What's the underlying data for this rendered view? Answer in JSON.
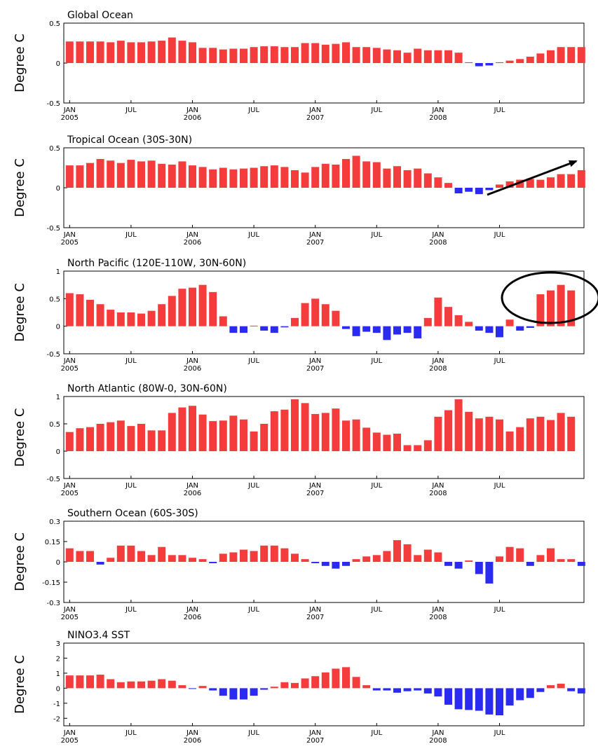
{
  "colors": {
    "positive": "#f53c3c",
    "negative": "#2a2af0",
    "axis": "#000000",
    "annotation": "#000000"
  },
  "x_ticks": [
    {
      "label": "JAN",
      "year": "2005",
      "month_index": 1
    },
    {
      "label": "JUL",
      "year": "",
      "month_index": 7
    },
    {
      "label": "JAN",
      "year": "2006",
      "month_index": 13
    },
    {
      "label": "JUL",
      "year": "",
      "month_index": 19
    },
    {
      "label": "JAN",
      "year": "2007",
      "month_index": 25
    },
    {
      "label": "JUL",
      "year": "",
      "month_index": 31
    },
    {
      "label": "JAN",
      "year": "2008",
      "month_index": 37
    },
    {
      "label": "JUL",
      "year": "",
      "month_index": 43
    }
  ],
  "chart_data": [
    {
      "type": "bar",
      "title": "Global Ocean",
      "ylabel": "Degree C",
      "ylim": [
        -0.5,
        0.5
      ],
      "yticks": [
        {
          "v": 0.5,
          "label": "0.5"
        },
        {
          "v": 0,
          "label": "0"
        },
        {
          "v": -0.5,
          "label": "-0.5"
        }
      ],
      "values": [
        0.27,
        0.27,
        0.27,
        0.27,
        0.26,
        0.28,
        0.26,
        0.26,
        0.27,
        0.28,
        0.32,
        0.28,
        0.26,
        0.19,
        0.19,
        0.17,
        0.18,
        0.18,
        0.2,
        0.21,
        0.21,
        0.2,
        0.2,
        0.25,
        0.25,
        0.23,
        0.24,
        0.26,
        0.2,
        0.2,
        0.19,
        0.17,
        0.16,
        0.13,
        0.18,
        0.16,
        0.16,
        0.16,
        0.13,
        0.01,
        -0.04,
        -0.03,
        0.01,
        0.03,
        0.05,
        0.08,
        0.12,
        0.16,
        0.2,
        0.2,
        0.2
      ]
    },
    {
      "type": "bar",
      "title": "Tropical Ocean (30S-30N)",
      "ylabel": "Degree C",
      "ylim": [
        -0.5,
        0.5
      ],
      "yticks": [
        {
          "v": 0.5,
          "label": "0.5"
        },
        {
          "v": 0,
          "label": "0"
        },
        {
          "v": -0.5,
          "label": "-0.5"
        }
      ],
      "values": [
        0.28,
        0.28,
        0.31,
        0.36,
        0.34,
        0.31,
        0.35,
        0.33,
        0.34,
        0.3,
        0.29,
        0.33,
        0.28,
        0.26,
        0.23,
        0.25,
        0.23,
        0.24,
        0.25,
        0.27,
        0.28,
        0.26,
        0.22,
        0.19,
        0.26,
        0.3,
        0.29,
        0.36,
        0.4,
        0.33,
        0.32,
        0.24,
        0.27,
        0.22,
        0.24,
        0.18,
        0.13,
        0.06,
        -0.07,
        -0.05,
        -0.08,
        -0.03,
        0.04,
        0.08,
        0.1,
        0.11,
        0.1,
        0.13,
        0.17,
        0.17,
        0.22
      ]
    },
    {
      "type": "bar",
      "title": "North Pacific (120E-110W, 30N-60N)",
      "ylabel": "Degree C",
      "ylim": [
        -0.5,
        1.0
      ],
      "yticks": [
        {
          "v": 1,
          "label": "1"
        },
        {
          "v": 0.5,
          "label": "0.5"
        },
        {
          "v": 0,
          "label": "0"
        },
        {
          "v": -0.5,
          "label": "-0.5"
        }
      ],
      "values": [
        0.6,
        0.58,
        0.48,
        0.4,
        0.3,
        0.25,
        0.25,
        0.23,
        0.28,
        0.4,
        0.55,
        0.68,
        0.7,
        0.75,
        0.62,
        0.18,
        -0.12,
        -0.12,
        0.01,
        -0.08,
        -0.12,
        -0.02,
        0.15,
        0.42,
        0.5,
        0.4,
        0.28,
        -0.05,
        -0.18,
        -0.1,
        -0.12,
        -0.25,
        -0.15,
        -0.12,
        -0.22,
        0.15,
        0.52,
        0.35,
        0.2,
        0.08,
        -0.08,
        -0.12,
        -0.2,
        0.12,
        -0.08,
        -0.03,
        0.58,
        0.65,
        0.75,
        0.65
      ]
    },
    {
      "type": "bar",
      "title": "North Atlantic (80W-0, 30N-60N)",
      "ylabel": "Degree C",
      "ylim": [
        -0.5,
        1.0
      ],
      "yticks": [
        {
          "v": 1,
          "label": "1"
        },
        {
          "v": 0.5,
          "label": "0.5"
        },
        {
          "v": 0,
          "label": "0"
        },
        {
          "v": -0.5,
          "label": "-0.5"
        }
      ],
      "values": [
        0.35,
        0.42,
        0.44,
        0.5,
        0.53,
        0.56,
        0.46,
        0.5,
        0.38,
        0.38,
        0.7,
        0.8,
        0.83,
        0.67,
        0.55,
        0.56,
        0.65,
        0.58,
        0.36,
        0.5,
        0.73,
        0.76,
        0.95,
        0.88,
        0.68,
        0.7,
        0.78,
        0.56,
        0.58,
        0.43,
        0.34,
        0.3,
        0.32,
        0.11,
        0.11,
        0.2,
        0.63,
        0.75,
        0.95,
        0.72,
        0.6,
        0.63,
        0.58,
        0.36,
        0.44,
        0.6,
        0.63,
        0.57,
        0.7,
        0.63
      ]
    },
    {
      "type": "bar",
      "title": "Southern Ocean (60S-30S)",
      "ylabel": "Degree C",
      "ylim": [
        -0.3,
        0.3
      ],
      "yticks": [
        {
          "v": 0.3,
          "label": "0.3"
        },
        {
          "v": 0.15,
          "label": "0.15"
        },
        {
          "v": 0,
          "label": "0"
        },
        {
          "v": -0.15,
          "label": "-0.15"
        },
        {
          "v": -0.3,
          "label": "-0.3"
        }
      ],
      "values": [
        0.1,
        0.08,
        0.08,
        -0.02,
        0.03,
        0.12,
        0.12,
        0.08,
        0.05,
        0.11,
        0.05,
        0.05,
        0.03,
        0.02,
        -0.01,
        0.06,
        0.07,
        0.09,
        0.08,
        0.12,
        0.12,
        0.1,
        0.06,
        0.02,
        -0.01,
        -0.03,
        -0.05,
        -0.03,
        0.02,
        0.04,
        0.05,
        0.08,
        0.16,
        0.13,
        0.05,
        0.09,
        0.07,
        -0.03,
        -0.05,
        0.01,
        -0.09,
        -0.16,
        0.04,
        0.11,
        0.1,
        -0.03,
        0.05,
        0.1,
        0.02,
        0.02,
        -0.03
      ]
    },
    {
      "type": "bar",
      "title": "NINO3.4 SST",
      "ylabel": "Degree C",
      "ylim": [
        -2.5,
        3.0
      ],
      "yticks": [
        {
          "v": 3,
          "label": "3"
        },
        {
          "v": 2,
          "label": "2"
        },
        {
          "v": 1,
          "label": "1"
        },
        {
          "v": 0,
          "label": "0"
        },
        {
          "v": -1,
          "label": "-1"
        },
        {
          "v": -2,
          "label": "-2"
        }
      ],
      "values": [
        0.85,
        0.85,
        0.85,
        0.9,
        0.6,
        0.4,
        0.45,
        0.45,
        0.5,
        0.6,
        0.5,
        0.2,
        -0.05,
        0.15,
        -0.15,
        -0.5,
        -0.75,
        -0.75,
        -0.5,
        -0.1,
        0.1,
        0.4,
        0.35,
        0.65,
        0.8,
        1.05,
        1.3,
        1.4,
        0.75,
        0.2,
        -0.15,
        -0.15,
        -0.3,
        -0.2,
        -0.15,
        -0.35,
        -0.55,
        -1.1,
        -1.4,
        -1.45,
        -1.5,
        -1.75,
        -1.8,
        -1.15,
        -0.8,
        -0.65,
        -0.25,
        0.2,
        0.3,
        -0.2,
        -0.35
      ]
    }
  ]
}
